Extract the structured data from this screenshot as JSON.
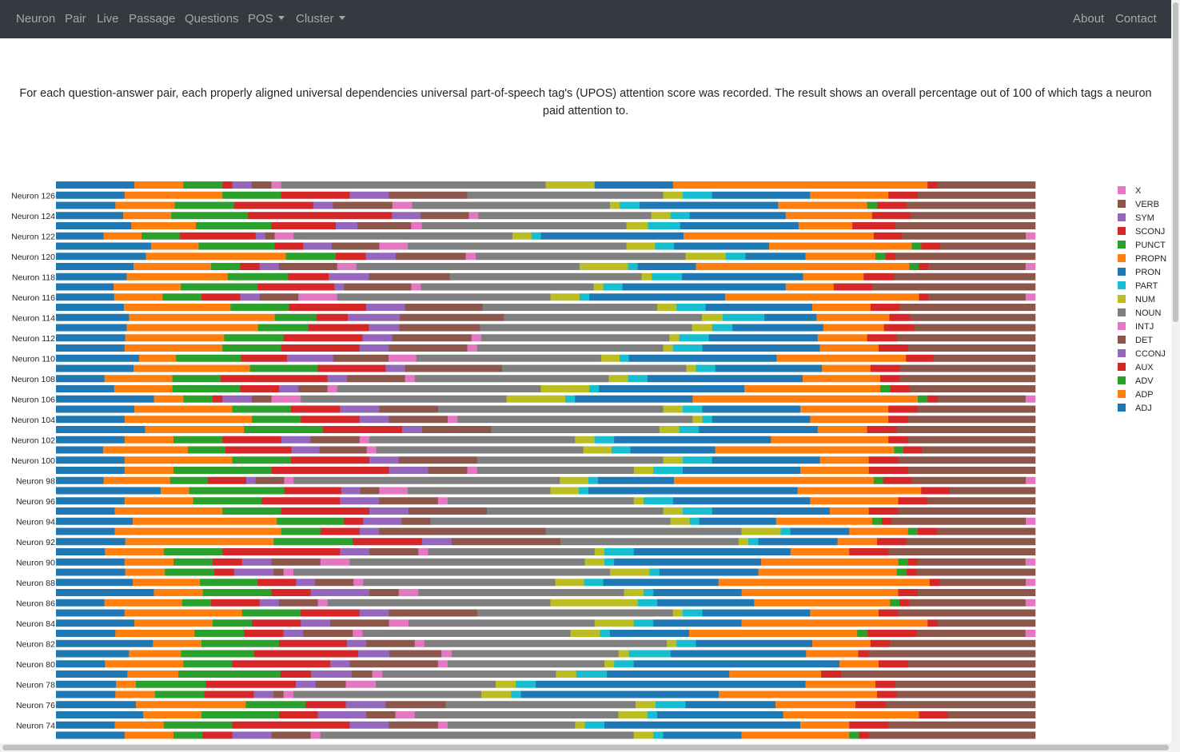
{
  "nav": {
    "neuron": "Neuron",
    "pair": "Pair",
    "live": "Live",
    "passage": "Passage",
    "questions": "Questions",
    "pos": "POS",
    "cluster": "Cluster",
    "about": "About",
    "contact": "Contact"
  },
  "intro": {
    "text": "For each question-answer pair, each properly aligned universal dependencies universal part-of-speech tag's (UPOS) attention score was recorded. The result shows an overall percentage out of 100 of which tags a neuron paid attention to."
  },
  "chart_data": {
    "type": "bar",
    "orientation": "horizontal",
    "stacked": true,
    "value_unit": "percent",
    "xlim": [
      0,
      100
    ],
    "legend_position": "right",
    "legend_order": [
      "X",
      "VERB",
      "SYM",
      "SCONJ",
      "PUNCT",
      "PROPN",
      "PRON",
      "PART",
      "NUM",
      "NOUN",
      "INTJ",
      "DET",
      "CCONJ",
      "AUX",
      "ADV",
      "ADP",
      "ADJ"
    ],
    "stack_order": [
      "ADJ",
      "ADP",
      "ADV",
      "AUX",
      "CCONJ",
      "DET",
      "INTJ",
      "NOUN",
      "NUM",
      "PART",
      "PRON",
      "PROPN",
      "PUNCT",
      "SCONJ",
      "SYM",
      "VERB",
      "X"
    ],
    "colors": {
      "ADJ": "#1f77b4",
      "ADP": "#ff7f0e",
      "ADV": "#2ca02c",
      "AUX": "#d62728",
      "CCONJ": "#9467bd",
      "DET": "#8c564b",
      "INTJ": "#e377c2",
      "NOUN": "#7f7f7f",
      "NUM": "#bcbd22",
      "PART": "#17becf",
      "PRON": "#1f77b4",
      "PROPN": "#ff7f0e",
      "PUNCT": "#2ca02c",
      "SCONJ": "#d62728",
      "SYM": "#9467bd",
      "VERB": "#8c564b",
      "X": "#e377c2"
    },
    "categories": [
      "",
      "Neuron 126",
      "",
      "Neuron 124",
      "",
      "Neuron 122",
      "",
      "Neuron 120",
      "",
      "Neuron 118",
      "",
      "Neuron 116",
      "",
      "Neuron 114",
      "",
      "Neuron 112",
      "",
      "Neuron 110",
      "",
      "Neuron 108",
      "",
      "Neuron 106",
      "",
      "Neuron 104",
      "",
      "Neuron 102",
      "",
      "Neuron 100",
      "",
      "Neuron 98",
      "",
      "Neuron 96",
      "",
      "Neuron 94",
      "",
      "Neuron 92",
      "",
      "Neuron 90",
      "",
      "Neuron 88",
      "",
      "Neuron 86",
      "",
      "Neuron 84",
      "",
      "Neuron 82",
      "",
      "Neuron 80",
      "",
      "Neuron 78",
      "",
      "Neuron 76",
      "",
      "Neuron 74",
      ""
    ],
    "rows": [
      [
        8,
        5,
        4,
        1,
        2,
        2,
        1,
        27,
        5,
        0,
        8,
        26,
        0,
        1,
        0,
        10,
        0
      ],
      [
        7,
        10,
        6,
        7,
        4,
        8,
        0,
        20,
        2,
        3,
        10,
        8,
        0,
        3,
        0,
        12,
        0
      ],
      [
        6,
        6,
        6,
        8,
        2,
        6,
        2,
        20,
        1,
        2,
        14,
        9,
        1,
        3,
        0,
        13,
        0
      ],
      [
        7,
        5,
        8,
        15,
        3,
        5,
        1,
        18,
        2,
        2,
        10,
        9,
        0,
        4,
        0,
        13,
        0
      ],
      [
        7,
        6,
        7,
        6,
        2,
        5,
        1,
        19,
        2,
        3,
        11,
        5,
        0,
        4,
        0,
        13,
        0
      ],
      [
        5,
        4,
        4,
        8,
        1,
        1,
        2,
        23,
        2,
        1,
        15,
        20,
        0,
        3,
        0,
        13,
        1
      ],
      [
        10,
        5,
        8,
        3,
        3,
        5,
        3,
        23,
        3,
        2,
        10,
        15,
        1,
        2,
        0,
        10,
        0
      ],
      [
        9,
        14,
        5,
        3,
        3,
        7,
        1,
        21,
        4,
        2,
        6,
        7,
        1,
        1,
        0,
        14,
        0
      ],
      [
        8,
        8,
        3,
        2,
        2,
        6,
        2,
        23,
        5,
        1,
        6,
        22,
        1,
        1,
        0,
        10,
        1
      ],
      [
        7,
        10,
        6,
        4,
        4,
        8,
        0,
        19,
        1,
        3,
        12,
        6,
        0,
        3,
        0,
        14,
        0
      ],
      [
        6,
        7,
        8,
        8,
        1,
        7,
        1,
        18,
        1,
        2,
        17,
        5,
        0,
        4,
        0,
        17,
        0
      ],
      [
        6,
        5,
        4,
        4,
        2,
        4,
        4,
        22,
        3,
        1,
        14,
        20,
        0,
        1,
        0,
        10,
        1
      ],
      [
        7,
        11,
        6,
        8,
        4,
        8,
        0,
        18,
        2,
        3,
        11,
        6,
        0,
        3,
        0,
        14,
        0
      ],
      [
        7,
        14,
        4,
        3,
        5,
        10,
        0,
        19,
        2,
        4,
        5,
        7,
        0,
        2,
        0,
        12,
        0
      ],
      [
        7,
        13,
        5,
        6,
        3,
        8,
        0,
        21,
        2,
        2,
        9,
        6,
        0,
        3,
        0,
        12,
        0
      ],
      [
        7,
        10,
        6,
        8,
        3,
        8,
        1,
        19,
        1,
        3,
        11,
        5,
        0,
        3,
        0,
        14,
        0
      ],
      [
        7,
        10,
        6,
        8,
        3,
        8,
        1,
        19,
        1,
        3,
        12,
        6,
        0,
        3,
        0,
        13,
        0
      ],
      [
        9,
        4,
        7,
        5,
        5,
        6,
        3,
        20,
        2,
        1,
        16,
        14,
        0,
        3,
        0,
        11,
        0
      ],
      [
        8,
        12,
        7,
        7,
        2,
        10,
        0,
        19,
        1,
        2,
        11,
        5,
        0,
        3,
        0,
        14,
        0
      ],
      [
        5,
        7,
        5,
        11,
        2,
        6,
        1,
        20,
        2,
        2,
        16,
        8,
        0,
        2,
        0,
        14,
        0
      ],
      [
        6,
        6,
        7,
        4,
        2,
        3,
        1,
        21,
        5,
        1,
        15,
        14,
        1,
        2,
        0,
        13,
        0
      ],
      [
        10,
        3,
        3,
        1,
        3,
        2,
        3,
        21,
        6,
        1,
        12,
        23,
        1,
        1,
        0,
        9,
        1
      ],
      [
        8,
        10,
        6,
        5,
        4,
        6,
        0,
        23,
        2,
        2,
        10,
        9,
        0,
        3,
        0,
        12,
        0
      ],
      [
        7,
        13,
        5,
        6,
        3,
        6,
        1,
        24,
        1,
        1,
        10,
        8,
        0,
        2,
        0,
        13,
        0
      ],
      [
        9,
        10,
        8,
        8,
        2,
        7,
        0,
        17,
        2,
        2,
        12,
        5,
        0,
        3,
        0,
        14,
        0
      ],
      [
        7,
        5,
        5,
        6,
        3,
        5,
        1,
        21,
        2,
        2,
        16,
        12,
        0,
        2,
        0,
        13,
        0
      ],
      [
        5,
        9,
        4,
        7,
        3,
        5,
        1,
        22,
        3,
        2,
        9,
        19,
        1,
        2,
        0,
        12,
        0
      ],
      [
        7,
        11,
        6,
        8,
        3,
        8,
        0,
        19,
        2,
        3,
        11,
        5,
        0,
        3,
        0,
        14,
        0
      ],
      [
        7,
        5,
        10,
        12,
        4,
        4,
        1,
        16,
        2,
        3,
        12,
        7,
        0,
        4,
        0,
        13,
        0
      ],
      [
        5,
        7,
        4,
        4,
        1,
        3,
        1,
        28,
        3,
        1,
        8,
        21,
        1,
        3,
        0,
        12,
        1
      ],
      [
        11,
        3,
        10,
        6,
        2,
        2,
        3,
        15,
        3,
        1,
        22,
        13,
        0,
        3,
        0,
        9,
        0
      ],
      [
        7,
        7,
        7,
        8,
        4,
        6,
        1,
        19,
        1,
        3,
        14,
        9,
        0,
        3,
        0,
        11,
        0
      ],
      [
        6,
        11,
        6,
        9,
        4,
        8,
        0,
        18,
        2,
        3,
        12,
        4,
        0,
        3,
        0,
        14,
        0
      ],
      [
        8,
        15,
        7,
        2,
        4,
        3,
        0,
        25,
        2,
        1,
        8,
        10,
        1,
        1,
        0,
        14,
        1
      ],
      [
        6,
        17,
        4,
        4,
        2,
        17,
        0,
        20,
        4,
        1,
        6,
        6,
        1,
        2,
        0,
        10,
        0
      ],
      [
        7,
        15,
        8,
        7,
        3,
        11,
        0,
        18,
        1,
        1,
        8,
        4,
        0,
        3,
        0,
        13,
        0
      ],
      [
        5,
        6,
        6,
        12,
        3,
        5,
        1,
        17,
        1,
        3,
        16,
        6,
        0,
        4,
        0,
        15,
        0
      ],
      [
        7,
        5,
        4,
        3,
        3,
        5,
        3,
        24,
        2,
        1,
        15,
        14,
        1,
        1,
        0,
        11,
        1
      ],
      [
        7,
        4,
        5,
        2,
        4,
        1,
        1,
        32,
        4,
        1,
        10,
        14,
        1,
        1,
        0,
        12,
        0
      ],
      [
        8,
        7,
        6,
        4,
        2,
        4,
        1,
        20,
        3,
        2,
        12,
        22,
        0,
        1,
        0,
        9,
        1
      ],
      [
        10,
        5,
        7,
        4,
        6,
        3,
        2,
        21,
        2,
        1,
        9,
        16,
        0,
        2,
        0,
        12,
        0
      ],
      [
        5,
        8,
        3,
        5,
        2,
        4,
        1,
        23,
        9,
        2,
        10,
        14,
        1,
        1,
        0,
        12,
        1
      ],
      [
        7,
        12,
        6,
        6,
        3,
        9,
        0,
        20,
        1,
        2,
        11,
        7,
        0,
        2,
        0,
        14,
        0
      ],
      [
        8,
        8,
        4,
        5,
        3,
        6,
        2,
        19,
        4,
        2,
        9,
        19,
        0,
        1,
        0,
        10,
        0
      ],
      [
        6,
        8,
        5,
        4,
        2,
        5,
        1,
        21,
        3,
        1,
        8,
        17,
        1,
        5,
        0,
        11,
        1
      ],
      [
        10,
        5,
        8,
        7,
        2,
        5,
        1,
        25,
        1,
        2,
        12,
        6,
        0,
        2,
        0,
        15,
        0
      ],
      [
        7,
        5,
        7,
        10,
        3,
        5,
        1,
        16,
        1,
        4,
        13,
        5,
        0,
        1,
        0,
        16,
        0
      ],
      [
        5,
        8,
        5,
        10,
        2,
        9,
        1,
        16,
        1,
        2,
        21,
        4,
        0,
        3,
        0,
        13,
        0
      ],
      [
        7,
        5,
        10,
        3,
        4,
        2,
        1,
        17,
        2,
        3,
        12,
        9,
        0,
        2,
        0,
        19,
        0
      ],
      [
        6,
        2,
        7,
        9,
        2,
        3,
        3,
        12,
        2,
        2,
        27,
        7,
        0,
        2,
        0,
        14,
        0
      ],
      [
        6,
        4,
        5,
        5,
        2,
        1,
        1,
        19,
        3,
        1,
        20,
        16,
        0,
        2,
        0,
        14,
        0
      ],
      [
        8,
        11,
        6,
        4,
        4,
        6,
        0,
        19,
        2,
        3,
        9,
        8,
        0,
        3,
        0,
        15,
        0
      ],
      [
        9,
        6,
        8,
        4,
        5,
        3,
        2,
        21,
        3,
        1,
        13,
        14,
        0,
        3,
        0,
        9,
        0
      ],
      [
        6,
        5,
        7,
        12,
        4,
        5,
        1,
        13,
        1,
        2,
        20,
        5,
        0,
        4,
        0,
        15,
        0
      ],
      [
        7,
        5,
        3,
        3,
        4,
        4,
        1,
        32,
        2,
        1,
        8,
        11,
        1,
        1,
        0,
        17,
        0
      ]
    ]
  }
}
